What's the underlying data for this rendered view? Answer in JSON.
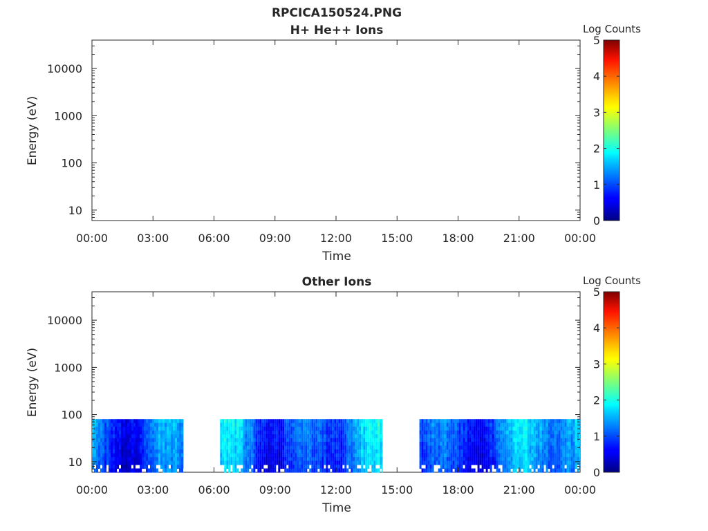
{
  "figure_title": "RPCICA150524.PNG",
  "chart_data": [
    {
      "type": "heatmap",
      "title": "H+ He++ Ions",
      "xlabel": "Time",
      "ylabel": "Energy (eV)",
      "x_ticks": [
        "00:00",
        "03:00",
        "06:00",
        "09:00",
        "12:00",
        "15:00",
        "18:00",
        "21:00",
        "00:00"
      ],
      "y_ticks": [
        {
          "value": 10,
          "label": "10"
        },
        {
          "value": 100,
          "label": "100"
        },
        {
          "value": 1000,
          "label": "1000"
        },
        {
          "value": 10000,
          "label": "10000"
        }
      ],
      "y_scale": "log",
      "ylim": [
        6,
        40000
      ],
      "xlim_hours": [
        0,
        24
      ],
      "colorbar": {
        "label": "Log Counts",
        "ticks": [
          "0",
          "1",
          "2",
          "3",
          "4",
          "5"
        ],
        "range": [
          0,
          5
        ],
        "colormap": "jet"
      },
      "data_segments": []
    },
    {
      "type": "heatmap",
      "title": "Other Ions",
      "xlabel": "Time",
      "ylabel": "Energy (eV)",
      "x_ticks": [
        "00:00",
        "03:00",
        "06:00",
        "09:00",
        "12:00",
        "15:00",
        "18:00",
        "21:00",
        "00:00"
      ],
      "y_ticks": [
        {
          "value": 10,
          "label": "10"
        },
        {
          "value": 100,
          "label": "100"
        },
        {
          "value": 1000,
          "label": "1000"
        },
        {
          "value": 10000,
          "label": "10000"
        }
      ],
      "y_scale": "log",
      "ylim": [
        6,
        40000
      ],
      "xlim_hours": [
        0,
        24
      ],
      "colorbar": {
        "label": "Log Counts",
        "ticks": [
          "0",
          "1",
          "2",
          "3",
          "4",
          "5"
        ],
        "range": [
          0,
          5
        ],
        "colormap": "jet"
      },
      "data_segments": [
        {
          "start_hour": 0.0,
          "end_hour": 4.5,
          "energy_range_eV": [
            6,
            80
          ],
          "log_counts_range": [
            0.3,
            1.9
          ]
        },
        {
          "start_hour": 6.3,
          "end_hour": 14.3,
          "energy_range_eV": [
            6,
            80
          ],
          "log_counts_range": [
            0.3,
            1.9
          ]
        },
        {
          "start_hour": 16.1,
          "end_hour": 24.0,
          "energy_range_eV": [
            6,
            80
          ],
          "log_counts_range": [
            0.3,
            1.9
          ]
        }
      ]
    }
  ]
}
